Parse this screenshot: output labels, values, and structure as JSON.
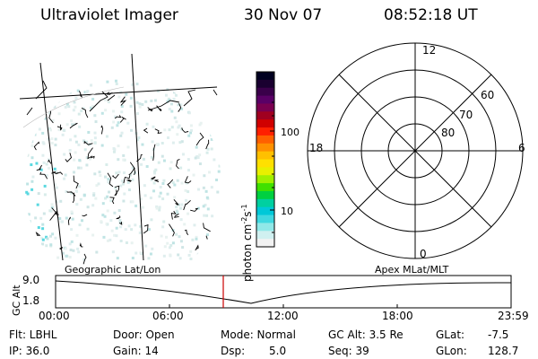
{
  "header": {
    "title": "Ultraviolet Imager",
    "date": "30 Nov 07",
    "time": "08:52:18 UT"
  },
  "colorbar": {
    "unit_prefix": "photon cm",
    "unit_exp1": "-2",
    "unit_mid": "s",
    "unit_exp2": "-1",
    "tick_labels": [
      "100",
      "10"
    ],
    "colors": [
      "#000020",
      "#1a0030",
      "#3a004a",
      "#5a0066",
      "#7a0050",
      "#a00020",
      "#d00000",
      "#ff2000",
      "#ff6000",
      "#ff9000",
      "#ffc000",
      "#ffe000",
      "#e8f000",
      "#a0f000",
      "#40e000",
      "#00d040",
      "#00d0a0",
      "#00c8d8",
      "#40d8e0",
      "#90e8e8",
      "#d0f0f0",
      "#f2f2f2"
    ]
  },
  "polar_plot": {
    "mlt_labels": {
      "top": "12",
      "left": "18",
      "right": "6",
      "bottom": "0"
    },
    "mlat_labels": [
      "60",
      "70",
      "80"
    ]
  },
  "timeline": {
    "y_axis_label": "GC Alt",
    "y_ticks": [
      "9.0",
      "1.8"
    ],
    "left_title": "Geographic Lat/Lon",
    "right_title": "Apex MLat/MLT",
    "x_ticks": [
      "00:00",
      "06:00",
      "12:00",
      "18:00",
      "23:59"
    ],
    "marker_color": "#cc0000"
  },
  "status": {
    "flt": "Flt: LBHL",
    "ip": "IP: 36.0",
    "door": "Door: Open",
    "gain": "Gain: 14",
    "mode": "Mode: Normal",
    "dsp_label": "Dsp:",
    "dsp_value": "5.0",
    "gc_alt": "GC Alt: 3.5 Re",
    "seq": "Seq: 39",
    "glat_label": "GLat:",
    "glat_value": "-7.5",
    "glon_label": "GLon:",
    "glon_value": "128.7"
  }
}
